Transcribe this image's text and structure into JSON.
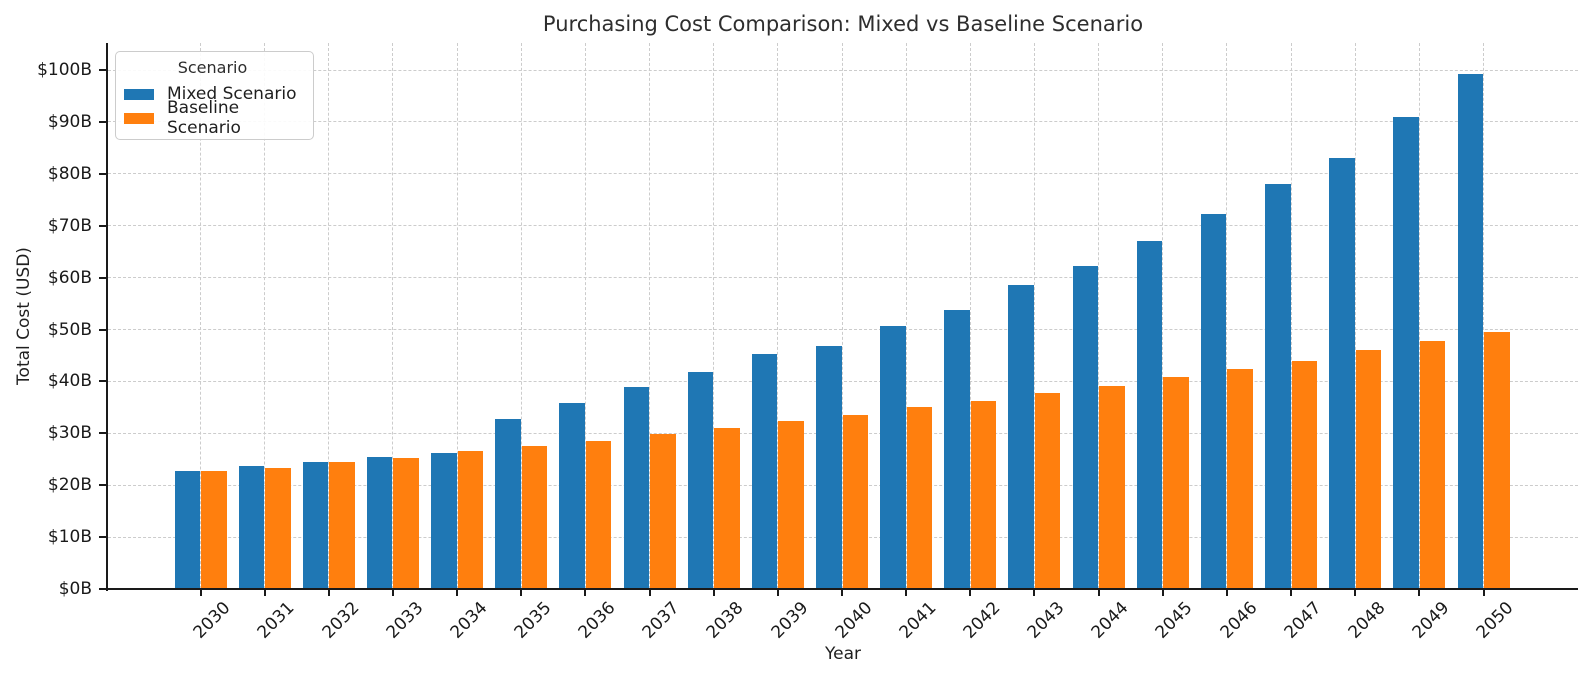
{
  "title": "Purchasing Cost Comparison: Mixed vs Baseline Scenario",
  "legend": {
    "title": "Scenario",
    "items": [
      {
        "label": "Mixed Scenario",
        "color": "#1f77b4"
      },
      {
        "label": "Baseline Scenario",
        "color": "#ff7f0e"
      }
    ]
  },
  "colors": {
    "mixed": "#1f77b4",
    "baseline": "#ff7f0e",
    "axis": "#1a1a1a",
    "grid": "#cccccc",
    "background": "#ffffff"
  },
  "chart_data": {
    "type": "bar",
    "title": "Purchasing Cost Comparison: Mixed vs Baseline Scenario",
    "xlabel": "Year",
    "ylabel": "Total Cost (USD)",
    "categories": [
      "2030",
      "2031",
      "2032",
      "2033",
      "2034",
      "2035",
      "2036",
      "2037",
      "2038",
      "2039",
      "2040",
      "2041",
      "2042",
      "2043",
      "2044",
      "2045",
      "2046",
      "2047",
      "2048",
      "2049",
      "2050"
    ],
    "series": [
      {
        "name": "Mixed Scenario",
        "color": "#1f77b4",
        "values": [
          22.7,
          23.7,
          24.4,
          25.4,
          26.3,
          32.7,
          35.9,
          38.9,
          41.8,
          45.3,
          46.8,
          50.6,
          53.8,
          58.5,
          62.3,
          67.1,
          72.2,
          78.0,
          83.0,
          91.0,
          99.3
        ]
      },
      {
        "name": "Baseline Scenario",
        "color": "#ff7f0e",
        "values": [
          22.7,
          23.4,
          24.4,
          25.3,
          26.5,
          27.5,
          28.6,
          29.8,
          31.0,
          32.4,
          33.5,
          35.1,
          36.2,
          37.8,
          39.2,
          40.8,
          42.4,
          44.0,
          46.0,
          47.8,
          49.6
        ]
      }
    ],
    "ylim": [
      0,
      100
    ],
    "ytick_values": [
      0,
      10,
      20,
      30,
      40,
      50,
      60,
      70,
      80,
      90,
      100
    ],
    "ytick_labels": [
      "$0B",
      "$10B",
      "$20B",
      "$30B",
      "$40B",
      "$50B",
      "$60B",
      "$70B",
      "$80B",
      "$90B",
      "$100B"
    ],
    "grid": "both-dashed",
    "legend_position": "upper left"
  }
}
